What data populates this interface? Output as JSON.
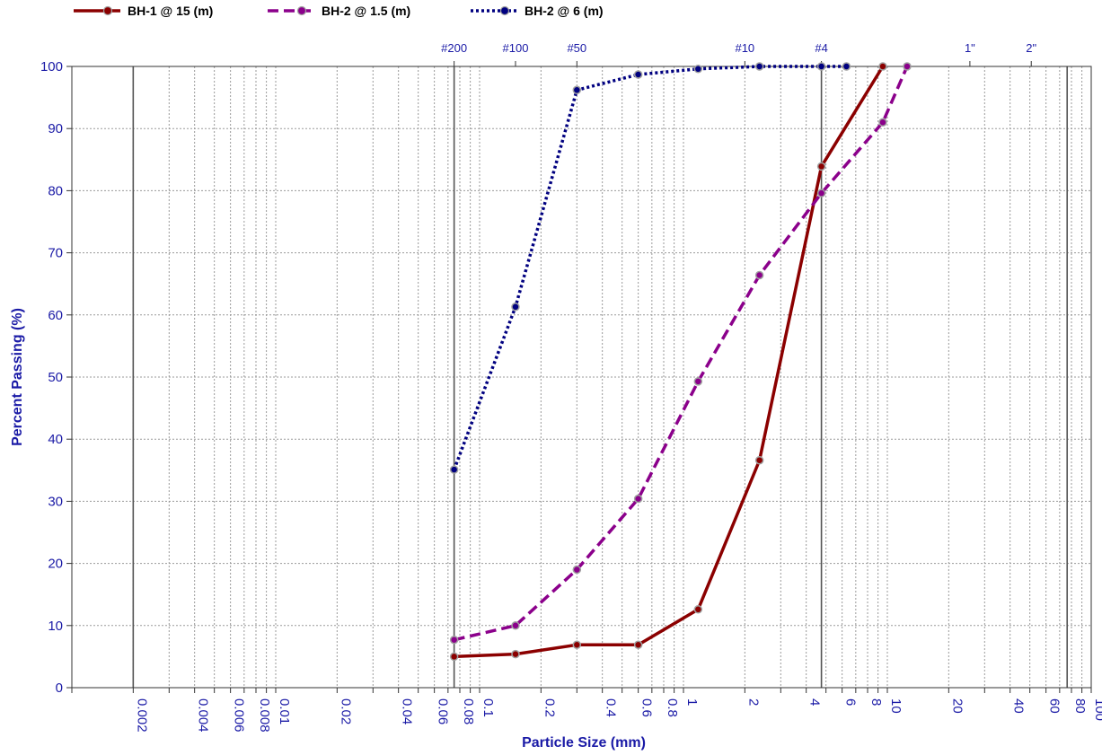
{
  "chart_data": {
    "type": "line",
    "title": "",
    "xlabel": "Particle Size (mm)",
    "ylabel": "Percent Passing (%)",
    "x_scale": "log",
    "xlim": [
      0.001,
      100
    ],
    "ylim": [
      0,
      100
    ],
    "grid": true,
    "legend_position": "top",
    "y_ticks": [
      0,
      10,
      20,
      30,
      40,
      50,
      60,
      70,
      80,
      90,
      100
    ],
    "x_tick_labels": [
      {
        "value": 0.002,
        "label": "0.002"
      },
      {
        "value": 0.004,
        "label": "0.004"
      },
      {
        "value": 0.006,
        "label": "0.006"
      },
      {
        "value": 0.008,
        "label": "0.008"
      },
      {
        "value": 0.01,
        "label": "0.01"
      },
      {
        "value": 0.02,
        "label": "0.02"
      },
      {
        "value": 0.04,
        "label": "0.04"
      },
      {
        "value": 0.06,
        "label": "0.06"
      },
      {
        "value": 0.08,
        "label": "0.08"
      },
      {
        "value": 0.1,
        "label": "0.1"
      },
      {
        "value": 0.2,
        "label": "0.2"
      },
      {
        "value": 0.4,
        "label": "0.4"
      },
      {
        "value": 0.6,
        "label": "0.6"
      },
      {
        "value": 0.8,
        "label": "0.8"
      },
      {
        "value": 1,
        "label": "1"
      },
      {
        "value": 2,
        "label": "2"
      },
      {
        "value": 4,
        "label": "4"
      },
      {
        "value": 6,
        "label": "6"
      },
      {
        "value": 8,
        "label": "8"
      },
      {
        "value": 10,
        "label": "10"
      },
      {
        "value": 20,
        "label": "20"
      },
      {
        "value": 40,
        "label": "40"
      },
      {
        "value": 60,
        "label": "60"
      },
      {
        "value": 80,
        "label": "80"
      },
      {
        "value": 100,
        "label": "100"
      }
    ],
    "sieve_markers": [
      {
        "value": 0.075,
        "label": "#200"
      },
      {
        "value": 0.15,
        "label": "#100"
      },
      {
        "value": 0.3,
        "label": "#50"
      },
      {
        "value": 2.0,
        "label": "#10"
      },
      {
        "value": 4.75,
        "label": "#4"
      },
      {
        "value": 25.4,
        "label": "1\""
      },
      {
        "value": 50.8,
        "label": "2\""
      }
    ],
    "heavy_gridlines_x": [
      0.002,
      0.075,
      4.75,
      76.2
    ],
    "series": [
      {
        "name": "BH-1 @ 15 (m)",
        "color": "#8b0000",
        "dash": "solid",
        "points": [
          {
            "x": 0.075,
            "y": 5.0
          },
          {
            "x": 0.15,
            "y": 5.4
          },
          {
            "x": 0.3,
            "y": 6.9
          },
          {
            "x": 0.6,
            "y": 6.9
          },
          {
            "x": 1.18,
            "y": 12.6
          },
          {
            "x": 2.36,
            "y": 36.6
          },
          {
            "x": 4.75,
            "y": 83.9
          },
          {
            "x": 9.5,
            "y": 100
          }
        ]
      },
      {
        "name": "BH-2 @ 1.5 (m)",
        "color": "#8b008b",
        "dash": "dashed",
        "points": [
          {
            "x": 0.075,
            "y": 7.7
          },
          {
            "x": 0.15,
            "y": 10.0
          },
          {
            "x": 0.3,
            "y": 19.0
          },
          {
            "x": 0.6,
            "y": 30.4
          },
          {
            "x": 1.18,
            "y": 49.3
          },
          {
            "x": 2.36,
            "y": 66.4
          },
          {
            "x": 4.75,
            "y": 79.6
          },
          {
            "x": 9.5,
            "y": 91.0
          },
          {
            "x": 12.5,
            "y": 100
          }
        ]
      },
      {
        "name": "BH-2 @ 6 (m)",
        "color": "#000080",
        "dash": "dotted",
        "points": [
          {
            "x": 0.075,
            "y": 35.1
          },
          {
            "x": 0.15,
            "y": 61.3
          },
          {
            "x": 0.3,
            "y": 96.2
          },
          {
            "x": 0.6,
            "y": 98.7
          },
          {
            "x": 1.18,
            "y": 99.6
          },
          {
            "x": 2.36,
            "y": 100
          },
          {
            "x": 4.75,
            "y": 100
          },
          {
            "x": 6.3,
            "y": 100
          }
        ]
      }
    ]
  }
}
